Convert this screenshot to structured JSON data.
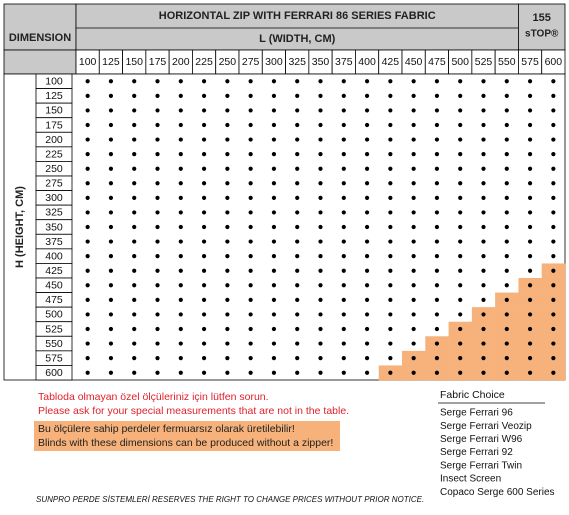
{
  "header": {
    "dimension": "DIMENSION",
    "title": "HORIZONTAL ZIP WITH FERRARI 86 SERIES FABRIC",
    "width_label": "L (WIDTH, CM)",
    "stop_model": "155",
    "stop_name": "sTOP®"
  },
  "table": {
    "height_label": "H (HEIGHT, CM)",
    "widths": [
      100,
      125,
      150,
      175,
      200,
      225,
      250,
      275,
      300,
      325,
      350,
      375,
      400,
      425,
      450,
      475,
      500,
      525,
      550,
      575,
      600
    ],
    "heights": [
      100,
      125,
      150,
      175,
      200,
      225,
      250,
      275,
      300,
      325,
      350,
      375,
      400,
      425,
      450,
      475,
      500,
      525,
      550,
      575,
      600
    ]
  },
  "notes": {
    "special_tr": "Tabloda olmayan özel ölçüleriniz için lütfen sorun.",
    "special_en": "Please ask for your special measurements that are not in the table.",
    "zipless_tr": "Bu ölçülere sahip perdeler fermuarsız olarak üretilebilir!",
    "zipless_en": "Blinds with these dimensions can be produced without a zipper!"
  },
  "fabric_choice": {
    "title": "Fabric Choice",
    "items": [
      "Serge Ferrari 96",
      "Serge Ferrari Veozip",
      "Serge Ferrari W96",
      "Serge Ferrari 92",
      "Serge Ferrari Twin",
      "Insect Screen",
      "Copaco Serge 600 Series"
    ]
  },
  "footer": "SUNPRO PERDE SİSTEMLERİ RESERVES THE RIGHT TO CHANGE PRICES WITHOUT PRIOR NOTICE."
}
